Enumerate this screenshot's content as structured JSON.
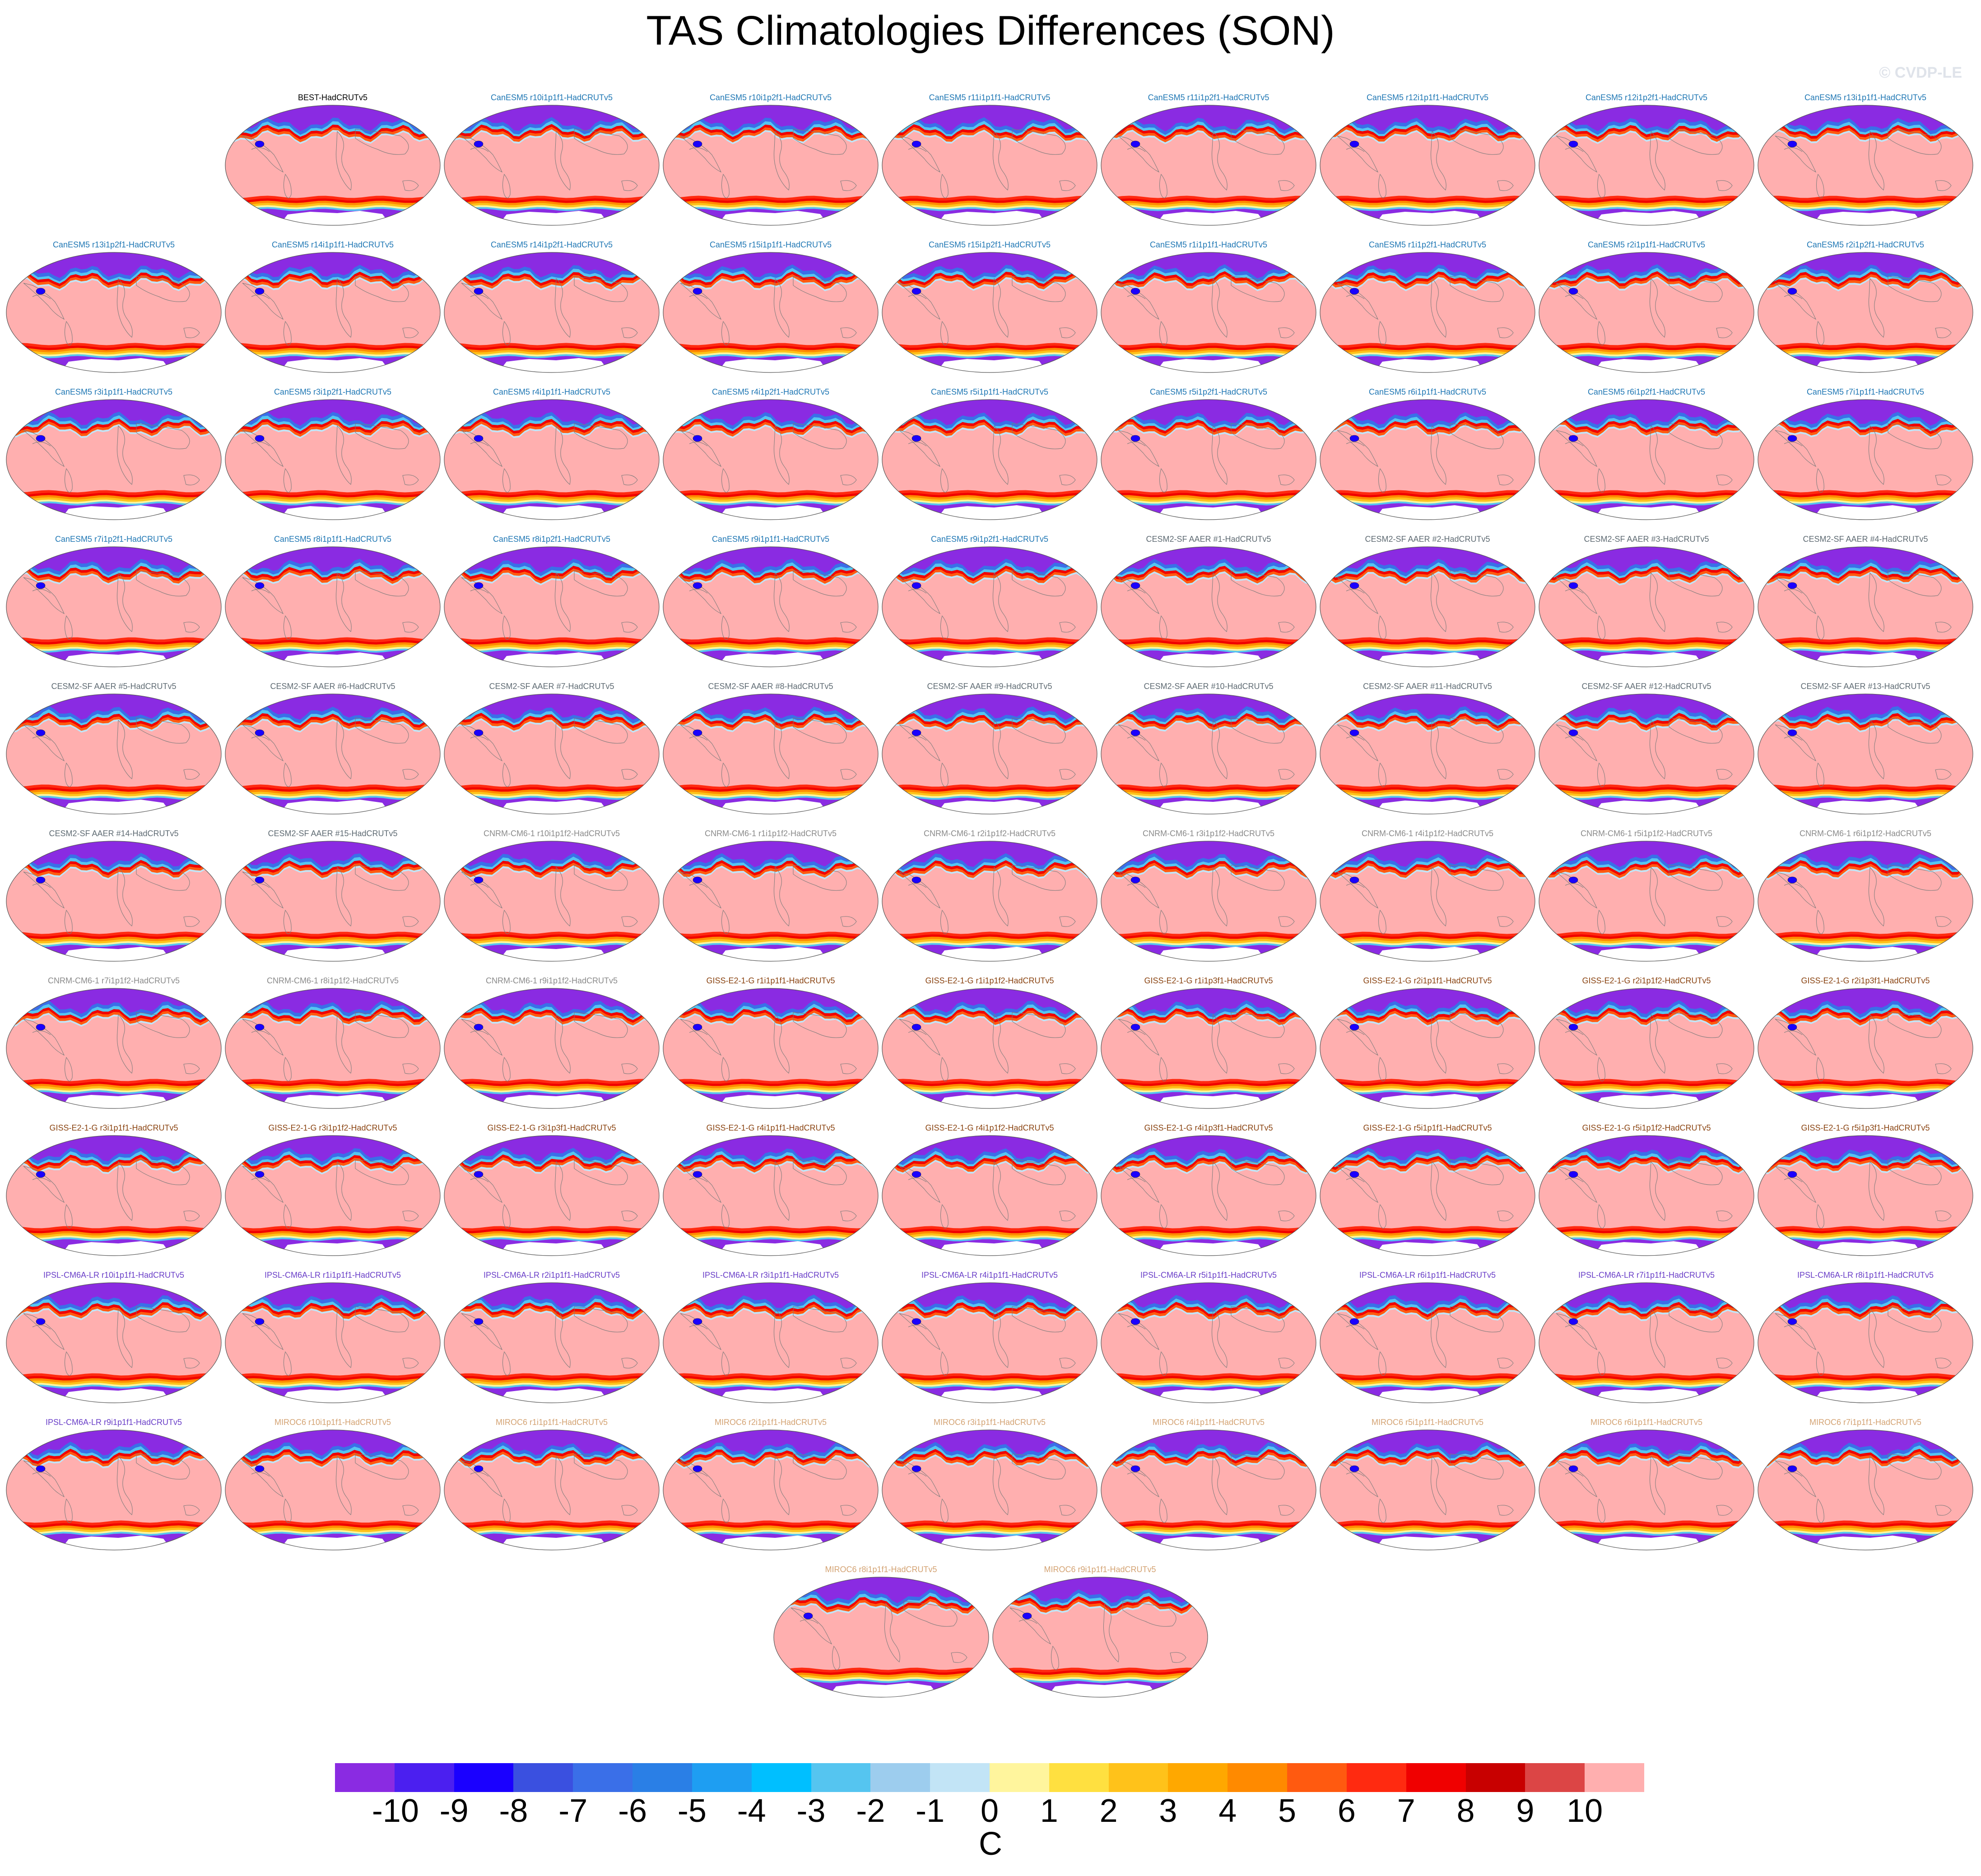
{
  "title": "TAS Climatologies Differences (SON)",
  "watermark": "© CVDP-LE",
  "chart_data": {
    "type": "heatmap",
    "description_type": "small-multiples-maps",
    "colorbar": {
      "unit": "C",
      "tick_labels": [
        "-10",
        "-9",
        "-8",
        "-7",
        "-6",
        "-5",
        "-4",
        "-3",
        "-2",
        "-1",
        "0",
        "1",
        "2",
        "3",
        "4",
        "5",
        "6",
        "7",
        "8",
        "9",
        "10"
      ],
      "colors": [
        "#8a2be2",
        "#4b1ff0",
        "#1a00ff",
        "#3a50e0",
        "#3a6fe8",
        "#2a7fe6",
        "#1e9ef2",
        "#00bfff",
        "#55c5f0",
        "#9dcdee",
        "#c2e4f6",
        "#fff59d",
        "#ffe040",
        "#ffc21a",
        "#ffa800",
        "#ff8a00",
        "#ff5a10",
        "#ff2a10",
        "#f00000",
        "#c80000",
        "#dc4545",
        "#ffafaf"
      ]
    },
    "panels_per_row": [
      8,
      9,
      9,
      9,
      9,
      9,
      9,
      9,
      9,
      9,
      2
    ],
    "panels": [
      {
        "title": "BEST-HadCRUTv5",
        "color": "#000000"
      },
      {
        "title": "CanESM5 r10i1p1f1-HadCRUTv5",
        "color": "#1f77b4"
      },
      {
        "title": "CanESM5 r10i1p2f1-HadCRUTv5",
        "color": "#1f77b4"
      },
      {
        "title": "CanESM5 r11i1p1f1-HadCRUTv5",
        "color": "#1f77b4"
      },
      {
        "title": "CanESM5 r11i1p2f1-HadCRUTv5",
        "color": "#1f77b4"
      },
      {
        "title": "CanESM5 r12i1p1f1-HadCRUTv5",
        "color": "#1f77b4"
      },
      {
        "title": "CanESM5 r12i1p2f1-HadCRUTv5",
        "color": "#1f77b4"
      },
      {
        "title": "CanESM5 r13i1p1f1-HadCRUTv5",
        "color": "#1f77b4"
      },
      {
        "title": "CanESM5 r13i1p2f1-HadCRUTv5",
        "color": "#1f77b4"
      },
      {
        "title": "CanESM5 r14i1p1f1-HadCRUTv5",
        "color": "#1f77b4"
      },
      {
        "title": "CanESM5 r14i1p2f1-HadCRUTv5",
        "color": "#1f77b4"
      },
      {
        "title": "CanESM5 r15i1p1f1-HadCRUTv5",
        "color": "#1f77b4"
      },
      {
        "title": "CanESM5 r15i1p2f1-HadCRUTv5",
        "color": "#1f77b4"
      },
      {
        "title": "CanESM5 r1i1p1f1-HadCRUTv5",
        "color": "#1f77b4"
      },
      {
        "title": "CanESM5 r1i1p2f1-HadCRUTv5",
        "color": "#1f77b4"
      },
      {
        "title": "CanESM5 r2i1p1f1-HadCRUTv5",
        "color": "#1f77b4"
      },
      {
        "title": "CanESM5 r2i1p2f1-HadCRUTv5",
        "color": "#1f77b4"
      },
      {
        "title": "CanESM5 r3i1p1f1-HadCRUTv5",
        "color": "#1f77b4"
      },
      {
        "title": "CanESM5 r3i1p2f1-HadCRUTv5",
        "color": "#1f77b4"
      },
      {
        "title": "CanESM5 r4i1p1f1-HadCRUTv5",
        "color": "#1f77b4"
      },
      {
        "title": "CanESM5 r4i1p2f1-HadCRUTv5",
        "color": "#1f77b4"
      },
      {
        "title": "CanESM5 r5i1p1f1-HadCRUTv5",
        "color": "#1f77b4"
      },
      {
        "title": "CanESM5 r5i1p2f1-HadCRUTv5",
        "color": "#1f77b4"
      },
      {
        "title": "CanESM5 r6i1p1f1-HadCRUTv5",
        "color": "#1f77b4"
      },
      {
        "title": "CanESM5 r6i1p2f1-HadCRUTv5",
        "color": "#1f77b4"
      },
      {
        "title": "CanESM5 r7i1p1f1-HadCRUTv5",
        "color": "#1f77b4"
      },
      {
        "title": "CanESM5 r7i1p2f1-HadCRUTv5",
        "color": "#1f77b4"
      },
      {
        "title": "CanESM5 r8i1p1f1-HadCRUTv5",
        "color": "#1f77b4"
      },
      {
        "title": "CanESM5 r8i1p2f1-HadCRUTv5",
        "color": "#1f77b4"
      },
      {
        "title": "CanESM5 r9i1p1f1-HadCRUTv5",
        "color": "#1f77b4"
      },
      {
        "title": "CanESM5 r9i1p2f1-HadCRUTv5",
        "color": "#1f77b4"
      },
      {
        "title": "CESM2-SF AAER #1-HadCRUTv5",
        "color": "#5f6b73"
      },
      {
        "title": "CESM2-SF AAER #2-HadCRUTv5",
        "color": "#5f6b73"
      },
      {
        "title": "CESM2-SF AAER #3-HadCRUTv5",
        "color": "#5f6b73"
      },
      {
        "title": "CESM2-SF AAER #4-HadCRUTv5",
        "color": "#5f6b73"
      },
      {
        "title": "CESM2-SF AAER #5-HadCRUTv5",
        "color": "#5f6b73"
      },
      {
        "title": "CESM2-SF AAER #6-HadCRUTv5",
        "color": "#5f6b73"
      },
      {
        "title": "CESM2-SF AAER #7-HadCRUTv5",
        "color": "#5f6b73"
      },
      {
        "title": "CESM2-SF AAER #8-HadCRUTv5",
        "color": "#5f6b73"
      },
      {
        "title": "CESM2-SF AAER #9-HadCRUTv5",
        "color": "#5f6b73"
      },
      {
        "title": "CESM2-SF AAER #10-HadCRUTv5",
        "color": "#5f6b73"
      },
      {
        "title": "CESM2-SF AAER #11-HadCRUTv5",
        "color": "#5f6b73"
      },
      {
        "title": "CESM2-SF AAER #12-HadCRUTv5",
        "color": "#5f6b73"
      },
      {
        "title": "CESM2-SF AAER #13-HadCRUTv5",
        "color": "#5f6b73"
      },
      {
        "title": "CESM2-SF AAER #14-HadCRUTv5",
        "color": "#5f6b73"
      },
      {
        "title": "CESM2-SF AAER #15-HadCRUTv5",
        "color": "#5f6b73"
      },
      {
        "title": "CNRM-CM6-1 r10i1p1f2-HadCRUTv5",
        "color": "#8a8a8a"
      },
      {
        "title": "CNRM-CM6-1 r1i1p1f2-HadCRUTv5",
        "color": "#8a8a8a"
      },
      {
        "title": "CNRM-CM6-1 r2i1p1f2-HadCRUTv5",
        "color": "#8a8a8a"
      },
      {
        "title": "CNRM-CM6-1 r3i1p1f2-HadCRUTv5",
        "color": "#8a8a8a"
      },
      {
        "title": "CNRM-CM6-1 r4i1p1f2-HadCRUTv5",
        "color": "#8a8a8a"
      },
      {
        "title": "CNRM-CM6-1 r5i1p1f2-HadCRUTv5",
        "color": "#8a8a8a"
      },
      {
        "title": "CNRM-CM6-1 r6i1p1f2-HadCRUTv5",
        "color": "#8a8a8a"
      },
      {
        "title": "CNRM-CM6-1 r7i1p1f2-HadCRUTv5",
        "color": "#8a8a8a"
      },
      {
        "title": "CNRM-CM6-1 r8i1p1f2-HadCRUTv5",
        "color": "#8a8a8a"
      },
      {
        "title": "CNRM-CM6-1 r9i1p1f2-HadCRUTv5",
        "color": "#8a8a8a"
      },
      {
        "title": "GISS-E2-1-G r1i1p1f1-HadCRUTv5",
        "color": "#8b4513"
      },
      {
        "title": "GISS-E2-1-G r1i1p1f2-HadCRUTv5",
        "color": "#8b4513"
      },
      {
        "title": "GISS-E2-1-G r1i1p3f1-HadCRUTv5",
        "color": "#8b4513"
      },
      {
        "title": "GISS-E2-1-G r2i1p1f1-HadCRUTv5",
        "color": "#8b4513"
      },
      {
        "title": "GISS-E2-1-G r2i1p1f2-HadCRUTv5",
        "color": "#8b4513"
      },
      {
        "title": "GISS-E2-1-G r2i1p3f1-HadCRUTv5",
        "color": "#8b4513"
      },
      {
        "title": "GISS-E2-1-G r3i1p1f1-HadCRUTv5",
        "color": "#8b4513"
      },
      {
        "title": "GISS-E2-1-G r3i1p1f2-HadCRUTv5",
        "color": "#8b4513"
      },
      {
        "title": "GISS-E2-1-G r3i1p3f1-HadCRUTv5",
        "color": "#8b4513"
      },
      {
        "title": "GISS-E2-1-G r4i1p1f1-HadCRUTv5",
        "color": "#8b4513"
      },
      {
        "title": "GISS-E2-1-G r4i1p1f2-HadCRUTv5",
        "color": "#8b4513"
      },
      {
        "title": "GISS-E2-1-G r4i1p3f1-HadCRUTv5",
        "color": "#8b4513"
      },
      {
        "title": "GISS-E2-1-G r5i1p1f1-HadCRUTv5",
        "color": "#8b4513"
      },
      {
        "title": "GISS-E2-1-G r5i1p1f2-HadCRUTv5",
        "color": "#8b4513"
      },
      {
        "title": "GISS-E2-1-G r5i1p3f1-HadCRUTv5",
        "color": "#8b4513"
      },
      {
        "title": "IPSL-CM6A-LR r10i1p1f1-HadCRUTv5",
        "color": "#6a3fc8"
      },
      {
        "title": "IPSL-CM6A-LR r1i1p1f1-HadCRUTv5",
        "color": "#6a3fc8"
      },
      {
        "title": "IPSL-CM6A-LR r2i1p1f1-HadCRUTv5",
        "color": "#6a3fc8"
      },
      {
        "title": "IPSL-CM6A-LR r3i1p1f1-HadCRUTv5",
        "color": "#6a3fc8"
      },
      {
        "title": "IPSL-CM6A-LR r4i1p1f1-HadCRUTv5",
        "color": "#6a3fc8"
      },
      {
        "title": "IPSL-CM6A-LR r5i1p1f1-HadCRUTv5",
        "color": "#6a3fc8"
      },
      {
        "title": "IPSL-CM6A-LR r6i1p1f1-HadCRUTv5",
        "color": "#6a3fc8"
      },
      {
        "title": "IPSL-CM6A-LR r7i1p1f1-HadCRUTv5",
        "color": "#6a3fc8"
      },
      {
        "title": "IPSL-CM6A-LR r8i1p1f1-HadCRUTv5",
        "color": "#6a3fc8"
      },
      {
        "title": "IPSL-CM6A-LR r9i1p1f1-HadCRUTv5",
        "color": "#6a3fc8"
      },
      {
        "title": "MIROC6 r10i1p1f1-HadCRUTv5",
        "color": "#d4a373"
      },
      {
        "title": "MIROC6 r1i1p1f1-HadCRUTv5",
        "color": "#d4a373"
      },
      {
        "title": "MIROC6 r2i1p1f1-HadCRUTv5",
        "color": "#d4a373"
      },
      {
        "title": "MIROC6 r3i1p1f1-HadCRUTv5",
        "color": "#d4a373"
      },
      {
        "title": "MIROC6 r4i1p1f1-HadCRUTv5",
        "color": "#d4a373"
      },
      {
        "title": "MIROC6 r5i1p1f1-HadCRUTv5",
        "color": "#d4a373"
      },
      {
        "title": "MIROC6 r6i1p1f1-HadCRUTv5",
        "color": "#d4a373"
      },
      {
        "title": "MIROC6 r7i1p1f1-HadCRUTv5",
        "color": "#d4a373"
      },
      {
        "title": "MIROC6 r8i1p1f1-HadCRUTv5",
        "color": "#d4a373"
      },
      {
        "title": "MIROC6 r9i1p1f1-HadCRUTv5",
        "color": "#d4a373"
      }
    ]
  }
}
